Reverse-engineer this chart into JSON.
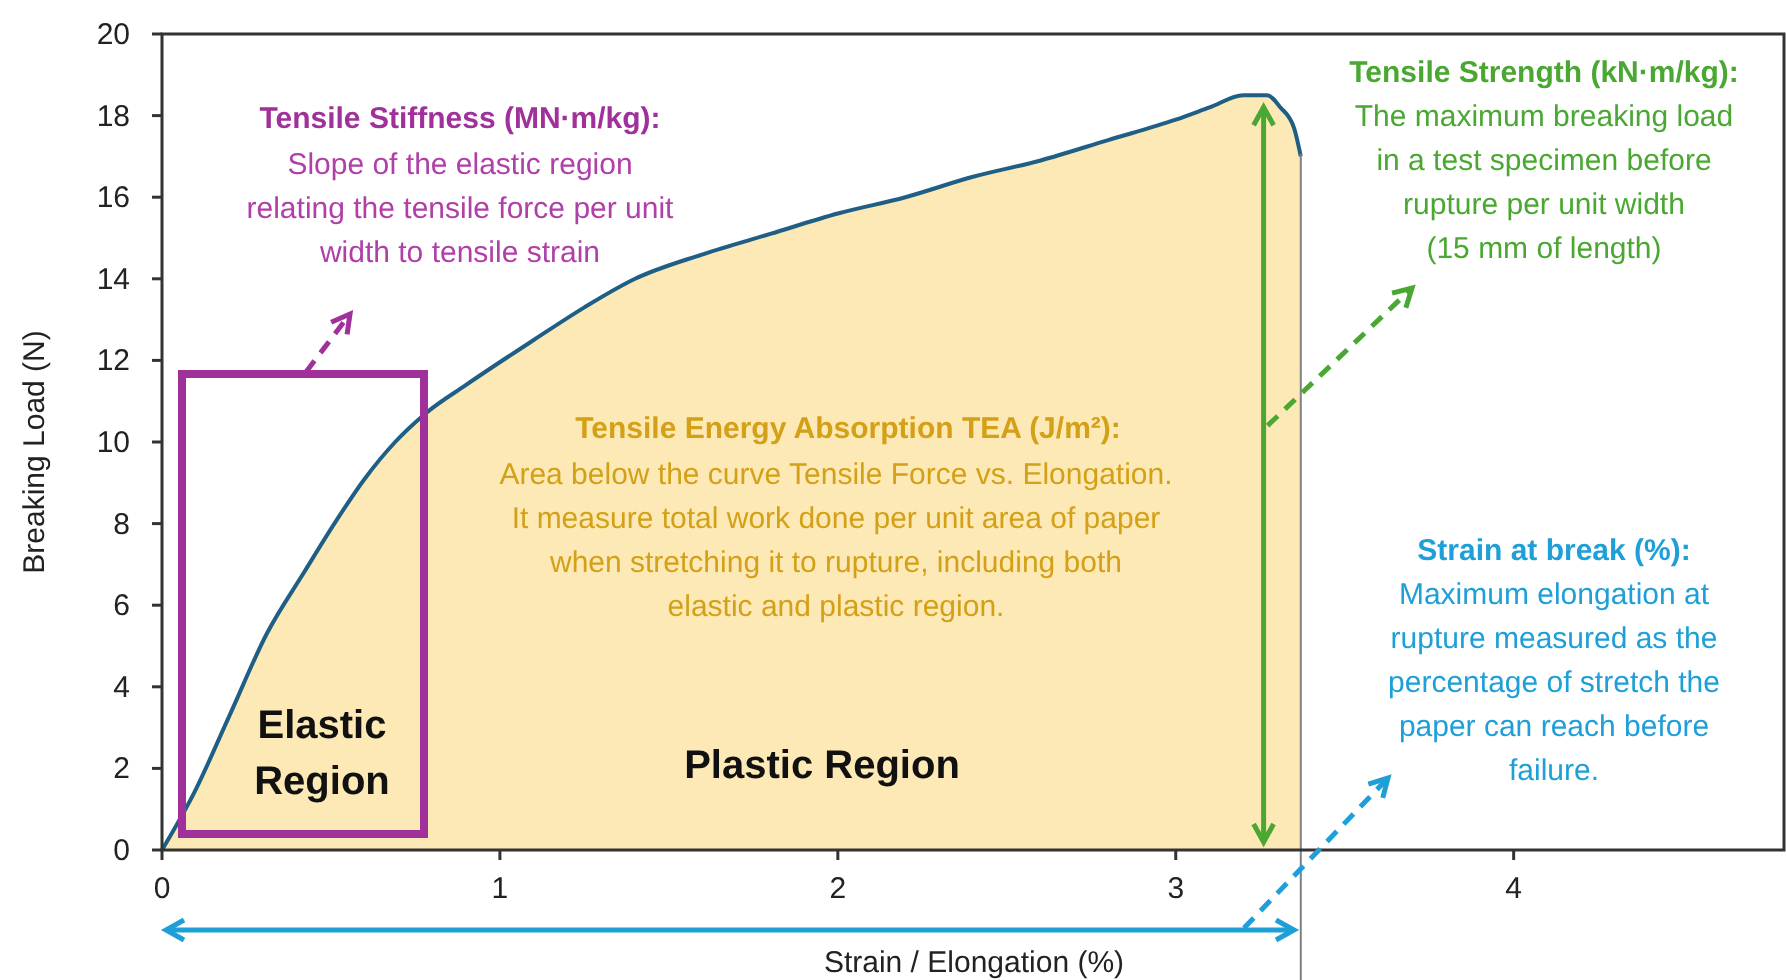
{
  "chart_data": {
    "type": "area",
    "xlabel": "Strain / Elongation (%)",
    "ylabel": "Breaking Load (N)",
    "x": [
      0,
      0.095,
      0.2,
      0.31,
      0.42,
      0.51,
      0.6,
      0.69,
      0.78,
      0.9,
      1.1,
      1.25,
      1.4,
      1.6,
      1.8,
      2.0,
      2.2,
      2.4,
      2.6,
      2.8,
      3.0,
      3.1,
      3.2,
      3.27,
      3.31,
      3.35,
      3.37
    ],
    "series": [
      {
        "color": "#fde9b5",
        "values": [
          0,
          1.4,
          3.3,
          5.3,
          6.8,
          8.0,
          9.1,
          10.0,
          10.7,
          11.4,
          12.5,
          13.3,
          14.0,
          14.6,
          15.1,
          15.6,
          16.0,
          16.5,
          16.9,
          17.4,
          17.9,
          18.2,
          18.5,
          18.5,
          18.2,
          17.7,
          17.0
        ]
      }
    ],
    "xlim": [
      0,
      4.8
    ],
    "xticks": [
      0,
      1,
      2,
      3,
      4
    ],
    "ylim": [
      0,
      20
    ],
    "yticks": [
      0,
      2,
      4,
      6,
      8,
      10,
      12,
      14,
      16,
      18,
      20
    ],
    "grid": false,
    "ref_lines": [
      {
        "axis": "x",
        "value": 3.37,
        "color": "#808080"
      },
      {
        "axis": "x",
        "value": 3.26,
        "color": "#4aa832"
      }
    ],
    "annotations": [
      "Tensile Stiffness (MN·m/kg):",
      "Slope of the elastic region\nrelating the tensile force per unit\nwidth to tensile strain",
      "Tensile Energy Absorption TEA (J/m²):",
      "Area below the curve Tensile Force vs. Elongation.\nIt measure total work done per unit area of paper\nwhen stretching it to rupture, including both\nelastic and plastic region.",
      "Elastic\nRegion",
      "Plastic Region",
      "Tensile Strength (kN·m/kg):",
      {
        "text": "The maximum breaking load\nin a test specimen before\nrupture per unit width\n(15 mm of length)",
        "x": 3.26,
        "y": 10.4
      },
      "Strain at break (%):",
      "Maximum elongation at\nrupture measured as the\npercentage of stretch the\npaper can reach before\nfailure."
    ]
  }
}
